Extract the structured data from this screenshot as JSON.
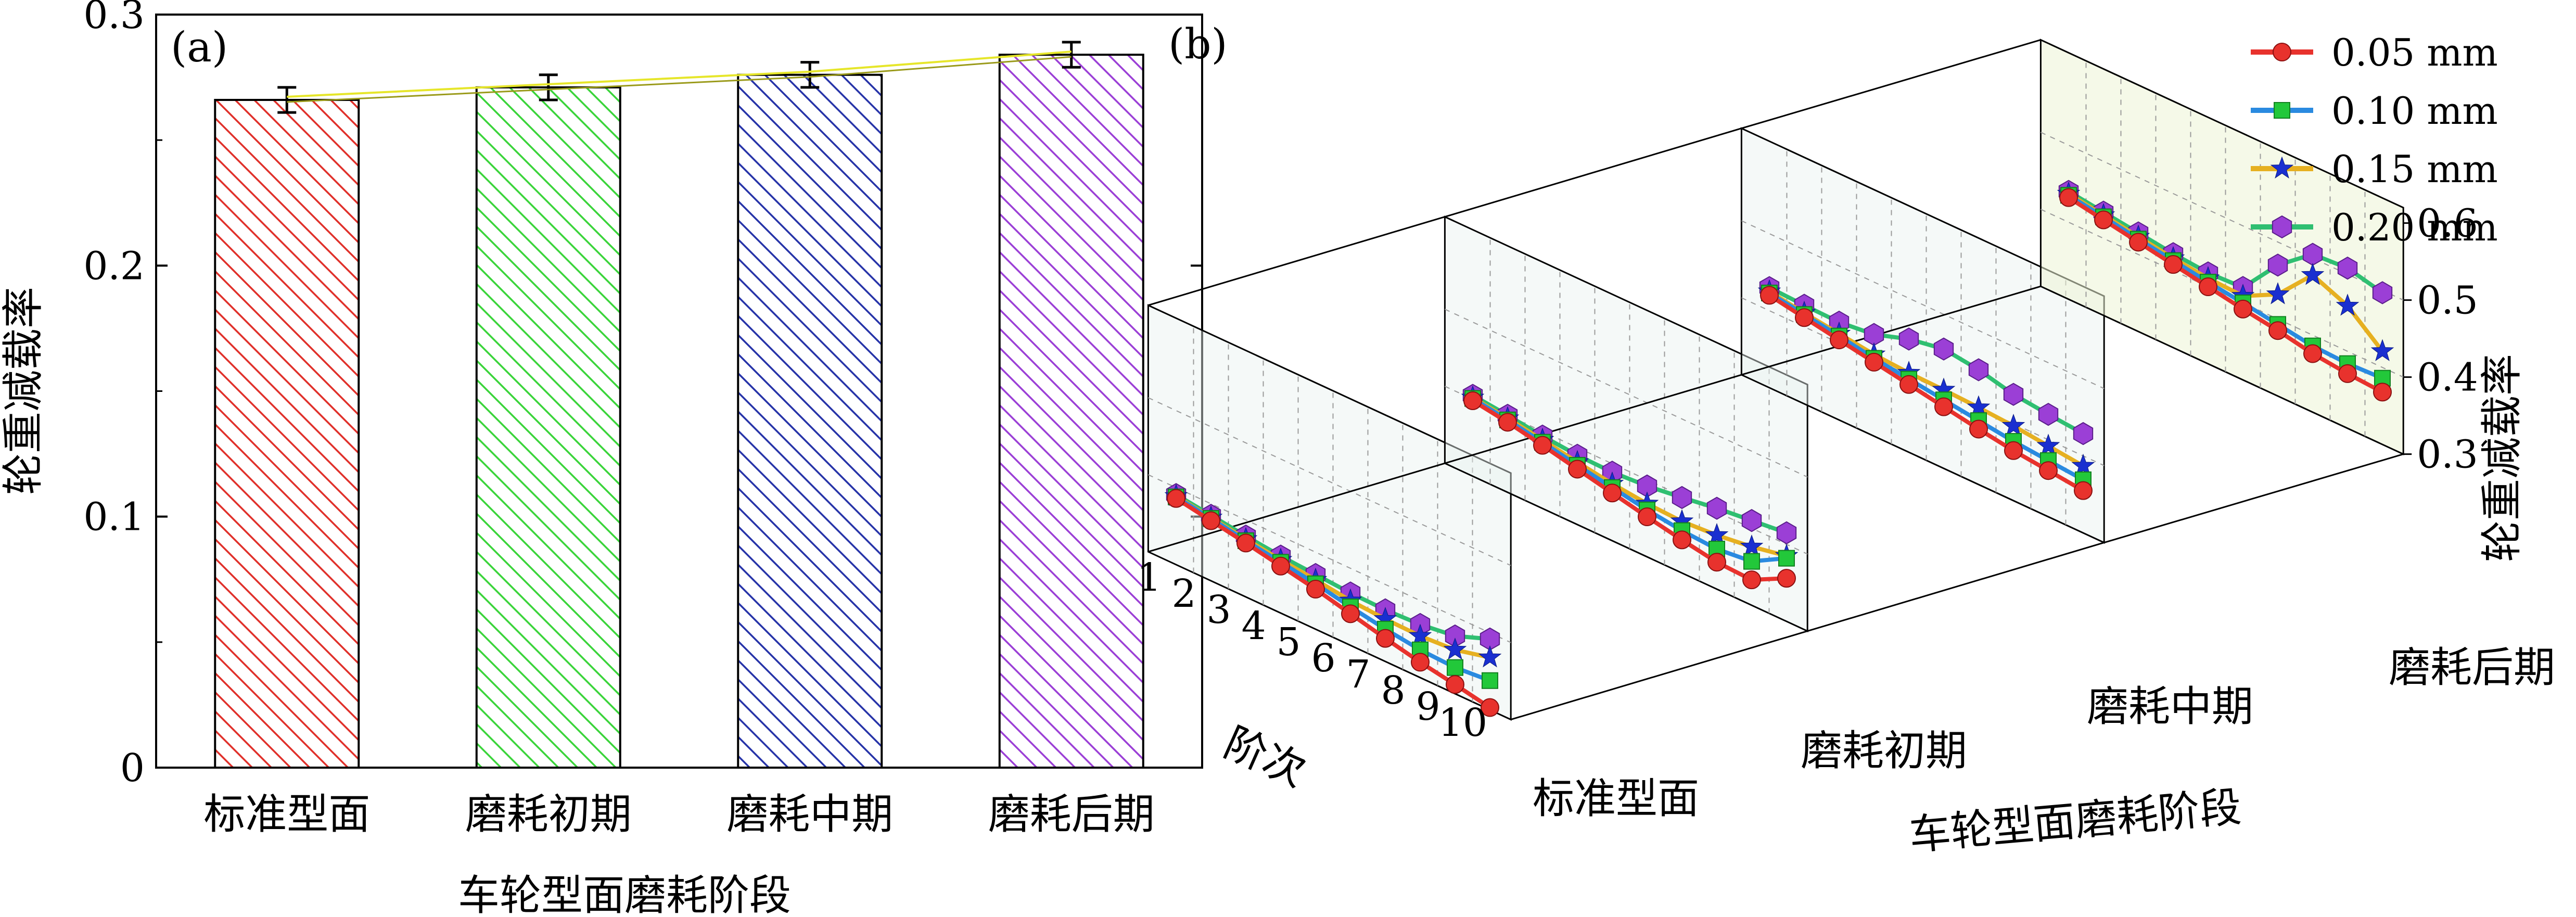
{
  "chart_data": [
    {
      "panel": "(a)",
      "type": "bar",
      "categories": [
        "标准型面",
        "磨耗初期",
        "磨耗中期",
        "磨耗后期"
      ],
      "values": [
        0.266,
        0.271,
        0.276,
        0.284
      ],
      "errors": [
        0.005,
        0.005,
        0.005,
        0.005
      ],
      "bar_colors": [
        "#e0302a",
        "#3ad43a",
        "#2633a8",
        "#9b3fd6"
      ],
      "trend_line_color": "#e6e62a",
      "xlabel": "车轮型面磨耗阶段",
      "ylabel": "轮重减载率",
      "ylim": [
        0,
        0.3
      ],
      "yticks": [
        "0",
        "0.1",
        "0.2",
        "0.3"
      ]
    },
    {
      "panel": "(b)",
      "type": "line",
      "subtype": "3d-stacked-line",
      "groups": [
        "标准型面",
        "磨耗初期",
        "磨耗中期",
        "磨耗后期"
      ],
      "x": [
        1,
        2,
        3,
        4,
        5,
        6,
        7,
        8,
        9,
        10
      ],
      "xlabel": "阶次",
      "group_label": "车轮型面磨耗阶段",
      "zlabel": "轮重减载率",
      "zlim": [
        0.3,
        0.6
      ],
      "zticks": [
        "0.3",
        "0.4",
        "0.5",
        "0.6"
      ],
      "series": [
        {
          "name": "0.05 mm",
          "color": "#e8322d",
          "marker": "circle",
          "values": [
            [
              0.386,
              0.378,
              0.37,
              0.361,
              0.352,
              0.341,
              0.33,
              0.32,
              0.312,
              0.303
            ],
            [
              0.398,
              0.391,
              0.382,
              0.372,
              0.362,
              0.352,
              0.343,
              0.335,
              0.333,
              0.356
            ],
            [
              0.42,
              0.412,
              0.404,
              0.396,
              0.388,
              0.38,
              0.372,
              0.365,
              0.36,
              0.355
            ],
            [
              0.432,
              0.424,
              0.416,
              0.408,
              0.4,
              0.392,
              0.385,
              0.376,
              0.371,
              0.368
            ]
          ]
        },
        {
          "name": "0.10 mm",
          "color": "#2a8ae0",
          "marker": "square",
          "values": [
            [
              0.388,
              0.381,
              0.373,
              0.366,
              0.359,
              0.35,
              0.342,
              0.336,
              0.334,
              0.338
            ],
            [
              0.401,
              0.394,
              0.386,
              0.377,
              0.369,
              0.361,
              0.355,
              0.352,
              0.357,
              0.382
            ],
            [
              0.423,
              0.416,
              0.409,
              0.401,
              0.395,
              0.389,
              0.383,
              0.377,
              0.373,
              0.369
            ],
            [
              0.435,
              0.428,
              0.42,
              0.413,
              0.406,
              0.4,
              0.393,
              0.386,
              0.384,
              0.386
            ]
          ]
        },
        {
          "name": "0.15 mm",
          "color": "#e6b021",
          "marker": "star",
          "values": [
            [
              0.389,
              0.382,
              0.375,
              0.369,
              0.364,
              0.358,
              0.355,
              0.354,
              0.357,
              0.368
            ],
            [
              0.402,
              0.396,
              0.389,
              0.381,
              0.374,
              0.369,
              0.367,
              0.37,
              0.376,
              0.385
            ],
            [
              0.425,
              0.418,
              0.412,
              0.406,
              0.403,
              0.402,
              0.4,
              0.397,
              0.392,
              0.387
            ],
            [
              0.437,
              0.43,
              0.423,
              0.416,
              0.411,
              0.409,
              0.432,
              0.478,
              0.459,
              0.421
            ]
          ]
        },
        {
          "name": "0.20 mm",
          "color": "#2fbf71",
          "marker": "hexagon",
          "marker_color": "#9b3fd6",
          "values": [
            [
              0.391,
              0.385,
              0.379,
              0.374,
              0.371,
              0.368,
              0.367,
              0.369,
              0.375,
              0.392
            ],
            [
              0.405,
              0.4,
              0.394,
              0.39,
              0.389,
              0.392,
              0.398,
              0.405,
              0.41,
              0.415
            ],
            [
              0.43,
              0.428,
              0.427,
              0.432,
              0.447,
              0.455,
              0.449,
              0.438,
              0.433,
              0.429
            ],
            [
              0.44,
              0.434,
              0.428,
              0.422,
              0.418,
              0.42,
              0.47,
              0.505,
              0.508,
              0.497
            ]
          ]
        }
      ],
      "legend_position": "top-right"
    }
  ]
}
